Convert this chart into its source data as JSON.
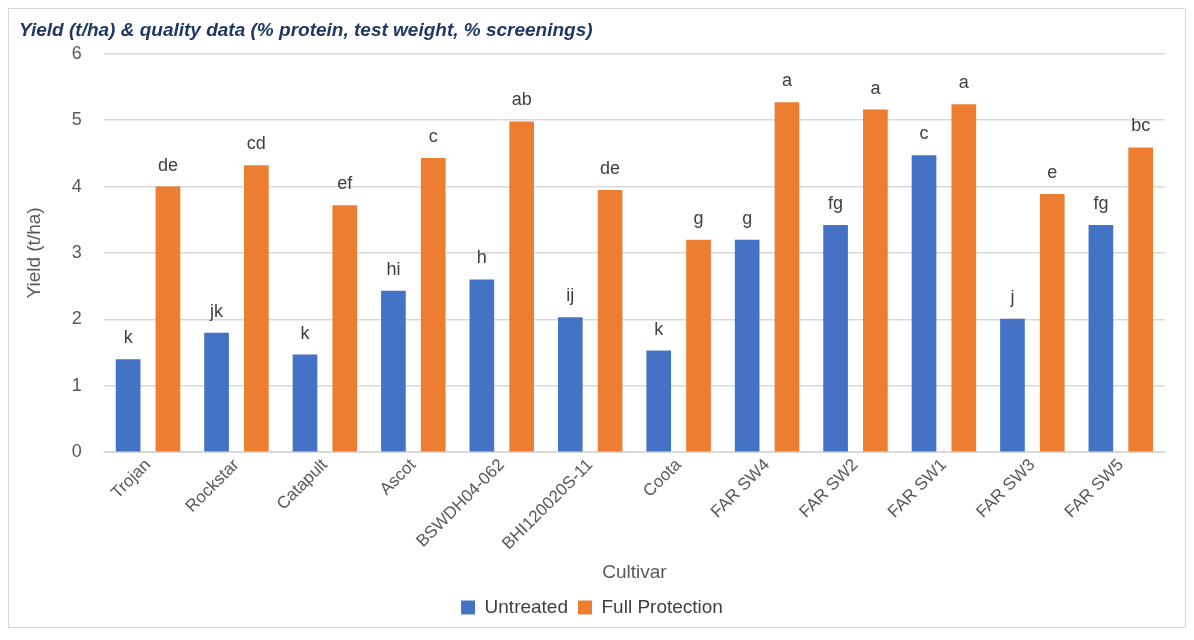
{
  "chart_data": {
    "type": "bar",
    "title": "Yield (t/ha) & quality data (% protein, test weight, % screenings)",
    "xlabel": "Cultivar",
    "ylabel": "Yield (t/ha)",
    "categories": [
      "Trojan",
      "Rockstar",
      "Catapult",
      "Ascot",
      "BSWDH04-062",
      "BHI120020S-11",
      "Coota",
      "FAR SW4",
      "FAR SW2",
      "FAR SW1",
      "FAR SW3",
      "FAR SW5"
    ],
    "series": [
      {
        "name": "Untreated",
        "color": "#4472c4",
        "values": [
          1.4,
          1.8,
          1.47,
          2.43,
          2.6,
          2.03,
          1.53,
          3.2,
          3.42,
          4.47,
          2.01,
          3.42
        ],
        "value_labels": [
          "k",
          "jk",
          "k",
          "hi",
          "h",
          "ij",
          "k",
          "g",
          "fg",
          "c",
          "j",
          "fg"
        ]
      },
      {
        "name": "Full Protection",
        "color": "#ed7d31",
        "values": [
          4.0,
          4.32,
          3.72,
          4.43,
          4.98,
          3.95,
          3.2,
          5.27,
          5.16,
          5.24,
          3.89,
          4.59
        ],
        "value_labels": [
          "de",
          "cd",
          "ef",
          "c",
          "ab",
          "de",
          "g",
          "a",
          "a",
          "a",
          "e",
          "bc"
        ]
      }
    ],
    "ylim": [
      0,
      6
    ],
    "yticks": [
      0,
      1,
      2,
      3,
      4,
      5,
      6
    ],
    "grid": "y",
    "legend": "bottom"
  }
}
